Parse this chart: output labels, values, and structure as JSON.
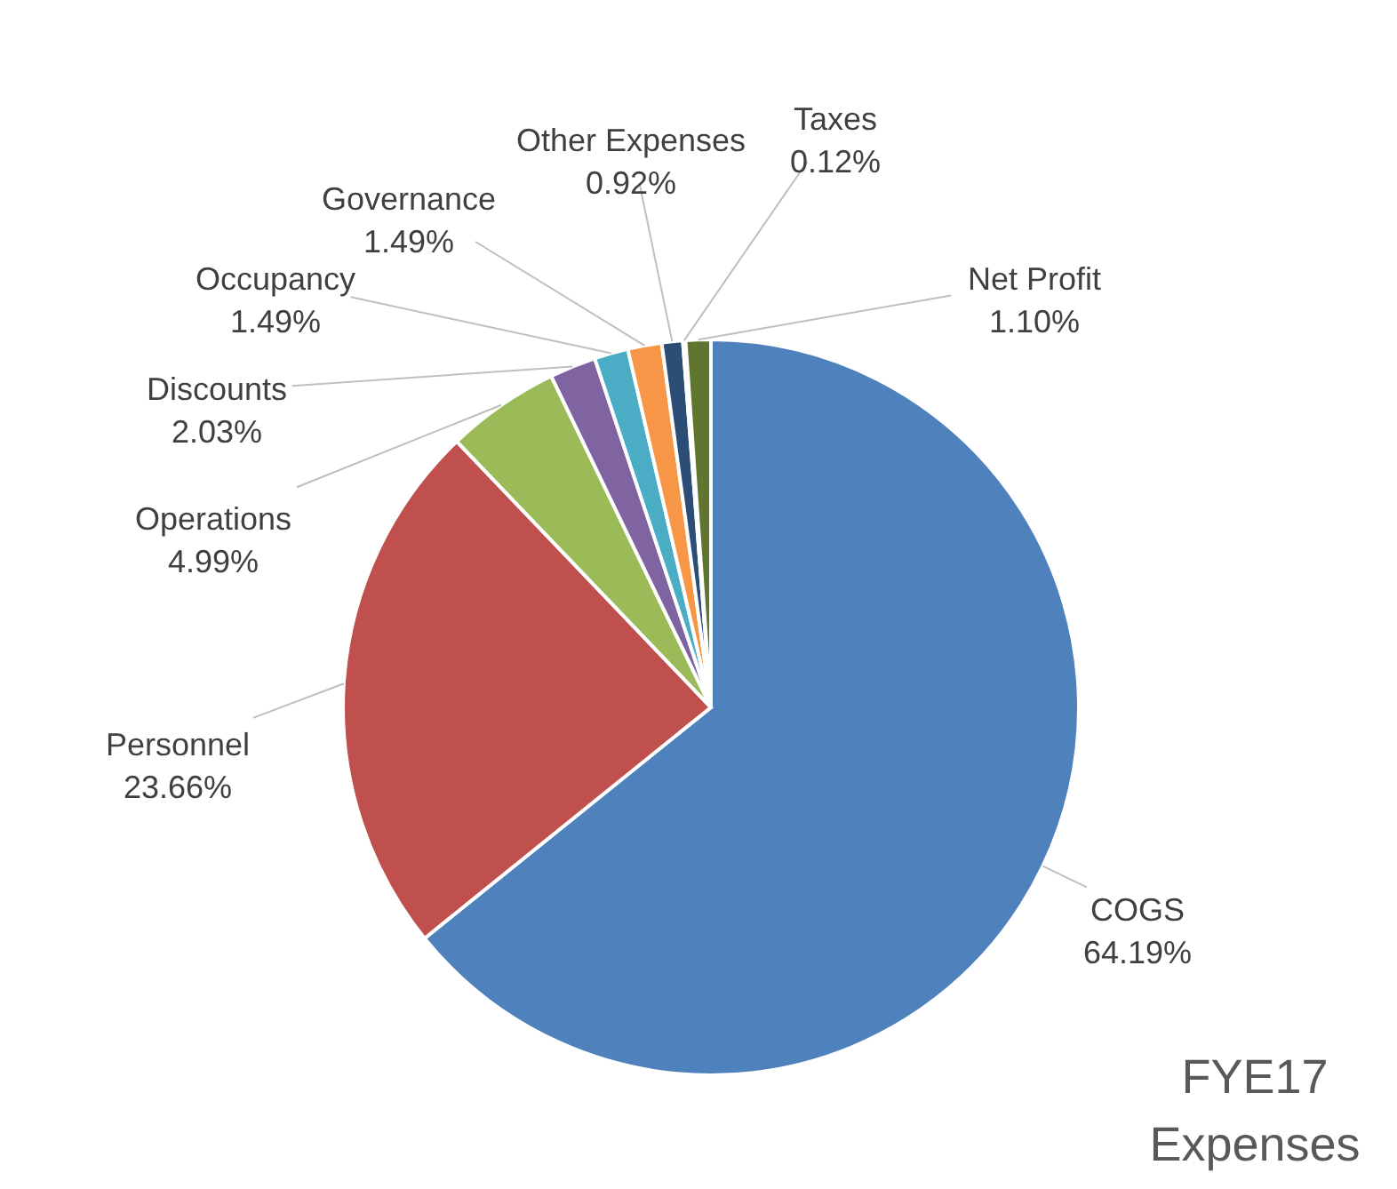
{
  "chart_data": {
    "type": "pie",
    "title": "FYE17 Expenses",
    "categories": [
      "COGS",
      "Personnel",
      "Operations",
      "Discounts",
      "Occupancy",
      "Governance",
      "Other Expenses",
      "Taxes",
      "Net Profit"
    ],
    "values": [
      64.19,
      23.66,
      4.99,
      2.03,
      1.49,
      1.49,
      0.92,
      0.12,
      1.1
    ],
    "value_labels": [
      "64.19%",
      "23.66%",
      "4.99%",
      "2.03%",
      "1.49%",
      "1.49%",
      "0.92%",
      "0.12%",
      "1.10%"
    ],
    "colors": [
      "#4f81bd",
      "#c0504d",
      "#9bbb59",
      "#8064a2",
      "#4bacc6",
      "#f79646",
      "#2c4d75",
      "#772c2a",
      "#5f7530"
    ]
  }
}
